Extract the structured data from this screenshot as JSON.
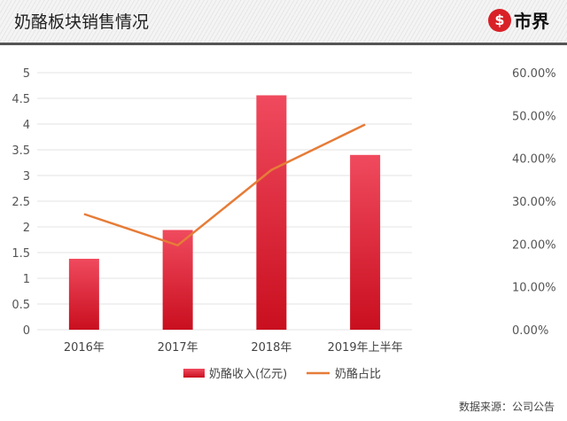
{
  "header": {
    "title": "奶酪板块销售情况",
    "logo_text": "市界"
  },
  "source": "数据来源：公司公告",
  "colors": {
    "bar": "#d81f36",
    "bar_light": "#f04a5e",
    "line": "#e67c38"
  },
  "chart_data": {
    "type": "bar+line",
    "categories": [
      "2016年",
      "2017年",
      "2018年",
      "2019年上半年"
    ],
    "series": [
      {
        "name": "奶酪收入(亿元)",
        "type": "bar",
        "axis": "left",
        "values": [
          1.38,
          1.94,
          4.56,
          3.4
        ]
      },
      {
        "name": "奶酪占比",
        "type": "line",
        "axis": "right",
        "values": [
          0.27,
          0.197,
          0.373,
          0.479
        ]
      }
    ],
    "left_axis": {
      "ylim": [
        0,
        5
      ],
      "ticks": [
        "0",
        "0.5",
        "1",
        "1.5",
        "2",
        "2.5",
        "3",
        "3.5",
        "4",
        "4.5",
        "5"
      ]
    },
    "right_axis": {
      "ylim": [
        0,
        0.6
      ],
      "ticks": [
        "0.00%",
        "10.00%",
        "20.00%",
        "30.00%",
        "40.00%",
        "50.00%",
        "60.00%"
      ]
    },
    "grid": true,
    "legend": "bottom"
  }
}
